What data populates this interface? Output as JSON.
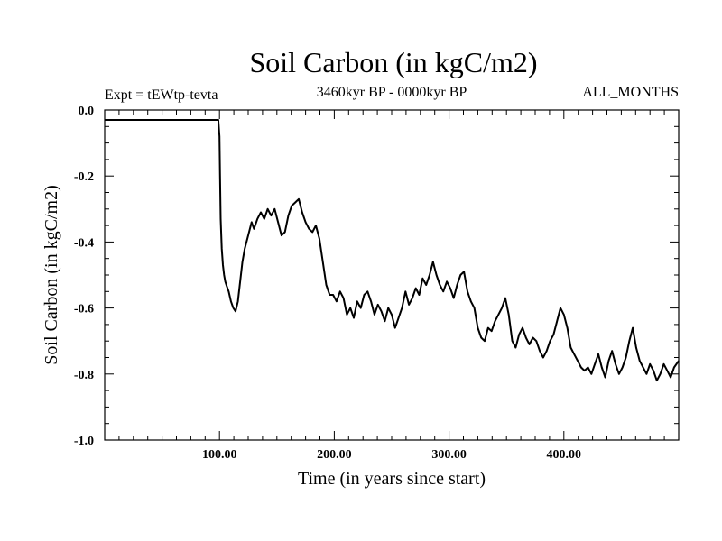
{
  "chart_data": {
    "type": "line",
    "title": "Soil Carbon (in kgC/m2)",
    "subtitle_left": "Expt = tEWtp-tevta",
    "subtitle_center": "3460kyr BP - 0000kyr BP",
    "subtitle_right": "ALL_MONTHS",
    "xlabel": "Time (in years since start)",
    "ylabel": "Soil Carbon (in kgC/m2)",
    "xlim": [
      0,
      500
    ],
    "ylim": [
      -1.0,
      0.0
    ],
    "x_ticks": [
      100,
      200,
      300,
      400
    ],
    "x_tick_labels": [
      "100.00",
      "200.00",
      "300.00",
      "400.00"
    ],
    "y_ticks": [
      0.0,
      -0.2,
      -0.4,
      -0.6,
      -0.8,
      -1.0
    ],
    "y_tick_labels": [
      "0.0",
      "-0.2",
      "-0.4",
      "-0.6",
      "-0.8",
      "-1.0"
    ],
    "grid": false,
    "series": [
      {
        "name": "Soil Carbon",
        "color": "#000000",
        "x": [
          0,
          98,
          99,
          100,
          100.5,
          101,
          102,
          103,
          104,
          105,
          106,
          108,
          110,
          112,
          114,
          116,
          118,
          120,
          122,
          125,
          128,
          130,
          133,
          136,
          139,
          142,
          145,
          148,
          151,
          154,
          157,
          160,
          163,
          166,
          169,
          172,
          175,
          178,
          181,
          184,
          187,
          190,
          193,
          196,
          199,
          202,
          205,
          208,
          211,
          214,
          217,
          220,
          223,
          226,
          229,
          232,
          235,
          238,
          241,
          244,
          247,
          250,
          253,
          256,
          259,
          262,
          265,
          268,
          271,
          274,
          277,
          280,
          283,
          286,
          289,
          292,
          295,
          298,
          301,
          304,
          307,
          310,
          313,
          316,
          319,
          322,
          325,
          328,
          331,
          334,
          337,
          340,
          343,
          346,
          349,
          352,
          355,
          358,
          361,
          364,
          367,
          370,
          373,
          376,
          379,
          382,
          385,
          388,
          391,
          394,
          397,
          400,
          403,
          406,
          409,
          412,
          415,
          418,
          421,
          424,
          427,
          430,
          433,
          436,
          439,
          442,
          445,
          448,
          451,
          454,
          457,
          460,
          463,
          466,
          469,
          472,
          475,
          478,
          481,
          484,
          487,
          490,
          493,
          496,
          500
        ],
        "values": [
          -0.03,
          -0.03,
          -0.03,
          -0.08,
          -0.2,
          -0.33,
          -0.42,
          -0.47,
          -0.5,
          -0.52,
          -0.53,
          -0.55,
          -0.58,
          -0.6,
          -0.61,
          -0.58,
          -0.52,
          -0.46,
          -0.42,
          -0.38,
          -0.34,
          -0.36,
          -0.33,
          -0.31,
          -0.33,
          -0.3,
          -0.32,
          -0.3,
          -0.34,
          -0.38,
          -0.37,
          -0.32,
          -0.29,
          -0.28,
          -0.27,
          -0.31,
          -0.34,
          -0.36,
          -0.37,
          -0.35,
          -0.39,
          -0.46,
          -0.53,
          -0.56,
          -0.56,
          -0.58,
          -0.55,
          -0.57,
          -0.62,
          -0.6,
          -0.63,
          -0.58,
          -0.6,
          -0.56,
          -0.55,
          -0.58,
          -0.62,
          -0.59,
          -0.61,
          -0.64,
          -0.6,
          -0.62,
          -0.66,
          -0.63,
          -0.6,
          -0.55,
          -0.59,
          -0.57,
          -0.54,
          -0.56,
          -0.51,
          -0.53,
          -0.5,
          -0.46,
          -0.5,
          -0.53,
          -0.55,
          -0.52,
          -0.54,
          -0.57,
          -0.53,
          -0.5,
          -0.49,
          -0.55,
          -0.58,
          -0.6,
          -0.66,
          -0.69,
          -0.7,
          -0.66,
          -0.67,
          -0.64,
          -0.62,
          -0.6,
          -0.57,
          -0.62,
          -0.7,
          -0.72,
          -0.68,
          -0.66,
          -0.69,
          -0.71,
          -0.69,
          -0.7,
          -0.73,
          -0.75,
          -0.73,
          -0.7,
          -0.68,
          -0.64,
          -0.6,
          -0.62,
          -0.66,
          -0.72,
          -0.74,
          -0.76,
          -0.78,
          -0.79,
          -0.78,
          -0.8,
          -0.77,
          -0.74,
          -0.78,
          -0.81,
          -0.76,
          -0.73,
          -0.77,
          -0.8,
          -0.78,
          -0.75,
          -0.7,
          -0.66,
          -0.72,
          -0.76,
          -0.78,
          -0.8,
          -0.77,
          -0.79,
          -0.82,
          -0.8,
          -0.77,
          -0.79,
          -0.81,
          -0.78,
          -0.76
        ]
      }
    ]
  }
}
